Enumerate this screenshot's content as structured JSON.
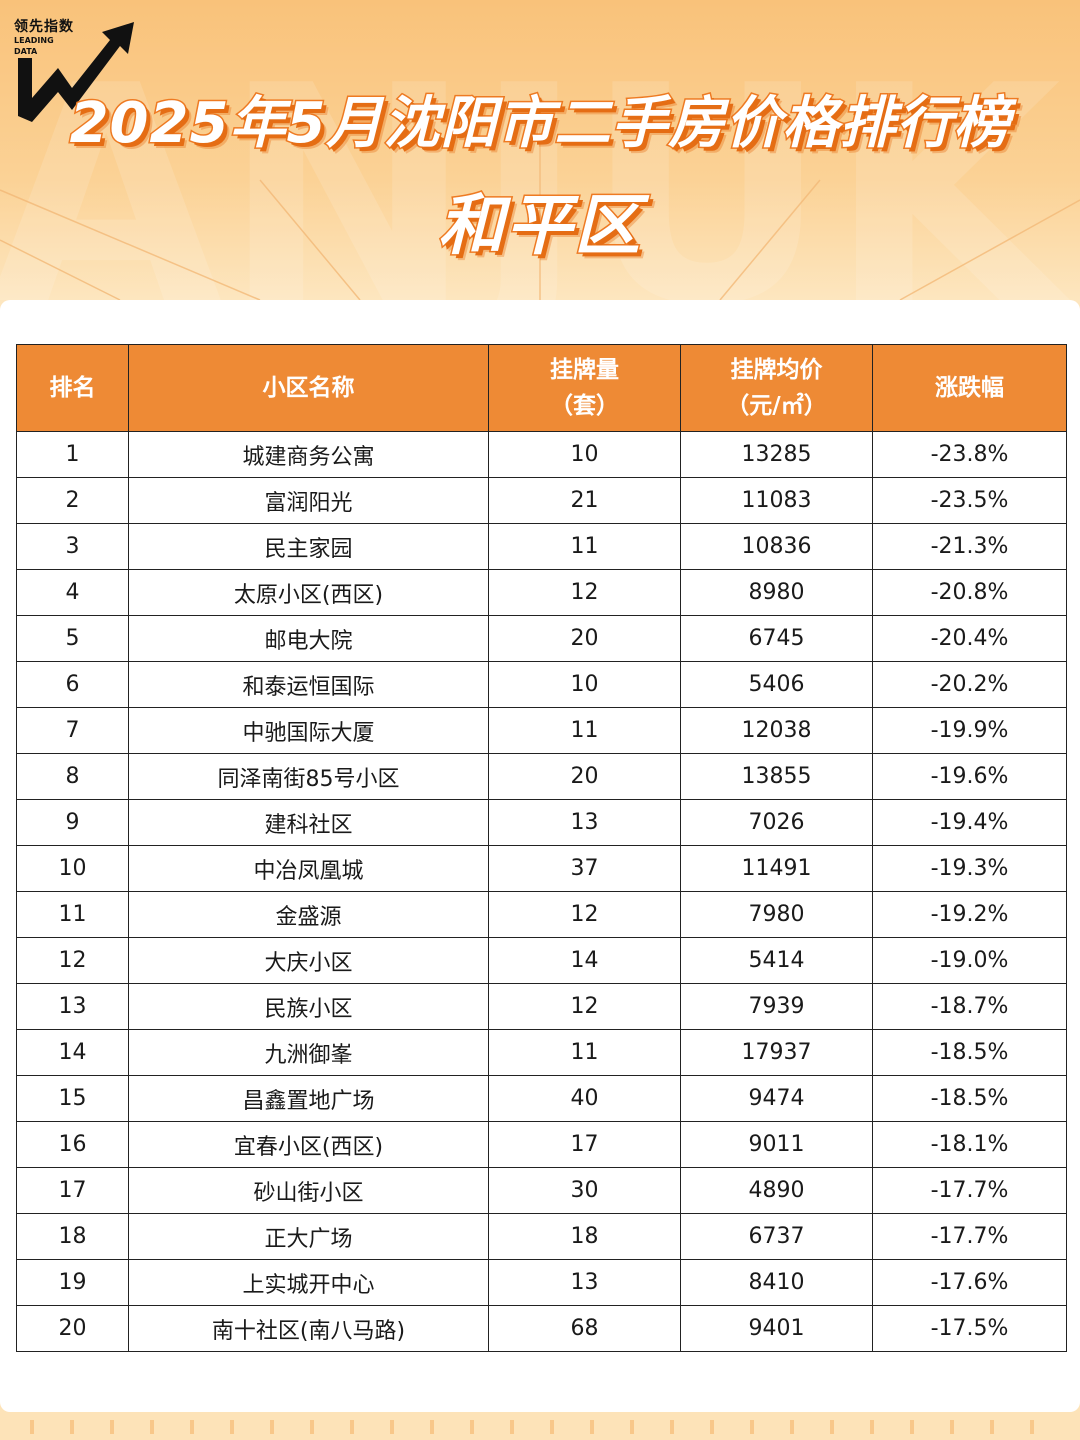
{
  "logo": {
    "cn": "领先指数",
    "en_line1": "LEADING",
    "en_line2": "DATA"
  },
  "watermark": "ANJUKE",
  "title": "2025年5月沈阳市二手房价格排行榜",
  "subtitle": "和平区",
  "table": {
    "headers": {
      "rank": "排名",
      "name": "小区名称",
      "listings_line1": "挂牌量",
      "listings_line2": "（套）",
      "price_line1": "挂牌均价",
      "price_line2": "（元/㎡）",
      "change": "涨跌幅"
    },
    "rows": [
      {
        "rank": "1",
        "name": "城建商务公寓",
        "listings": "10",
        "price": "13285",
        "change": "-23.8%"
      },
      {
        "rank": "2",
        "name": "富润阳光",
        "listings": "21",
        "price": "11083",
        "change": "-23.5%"
      },
      {
        "rank": "3",
        "name": "民主家园",
        "listings": "11",
        "price": "10836",
        "change": "-21.3%"
      },
      {
        "rank": "4",
        "name": "太原小区(西区)",
        "listings": "12",
        "price": "8980",
        "change": "-20.8%"
      },
      {
        "rank": "5",
        "name": "邮电大院",
        "listings": "20",
        "price": "6745",
        "change": "-20.4%"
      },
      {
        "rank": "6",
        "name": "和泰运恒国际",
        "listings": "10",
        "price": "5406",
        "change": "-20.2%"
      },
      {
        "rank": "7",
        "name": "中驰国际大厦",
        "listings": "11",
        "price": "12038",
        "change": "-19.9%"
      },
      {
        "rank": "8",
        "name": "同泽南街85号小区",
        "listings": "20",
        "price": "13855",
        "change": "-19.6%"
      },
      {
        "rank": "9",
        "name": "建科社区",
        "listings": "13",
        "price": "7026",
        "change": "-19.4%"
      },
      {
        "rank": "10",
        "name": "中冶凤凰城",
        "listings": "37",
        "price": "11491",
        "change": "-19.3%"
      },
      {
        "rank": "11",
        "name": "金盛源",
        "listings": "12",
        "price": "7980",
        "change": "-19.2%"
      },
      {
        "rank": "12",
        "name": "大庆小区",
        "listings": "14",
        "price": "5414",
        "change": "-19.0%"
      },
      {
        "rank": "13",
        "name": "民族小区",
        "listings": "12",
        "price": "7939",
        "change": "-18.7%"
      },
      {
        "rank": "14",
        "name": "九洲御峯",
        "listings": "11",
        "price": "17937",
        "change": "-18.5%"
      },
      {
        "rank": "15",
        "name": "昌鑫置地广场",
        "listings": "40",
        "price": "9474",
        "change": "-18.5%"
      },
      {
        "rank": "16",
        "name": "宜春小区(西区)",
        "listings": "17",
        "price": "9011",
        "change": "-18.1%"
      },
      {
        "rank": "17",
        "name": "砂山街小区",
        "listings": "30",
        "price": "4890",
        "change": "-17.7%"
      },
      {
        "rank": "18",
        "name": "正大广场",
        "listings": "18",
        "price": "6737",
        "change": "-17.7%"
      },
      {
        "rank": "19",
        "name": "上实城开中心",
        "listings": "13",
        "price": "8410",
        "change": "-17.6%"
      },
      {
        "rank": "20",
        "name": "南十社区(南八马路)",
        "listings": "68",
        "price": "9401",
        "change": "-17.5%"
      }
    ]
  },
  "colors": {
    "header_bg": "#ee8a35",
    "title_stroke": "#ee7a22",
    "background_top": "#f9c27a",
    "background_bottom": "#fde3b8"
  }
}
